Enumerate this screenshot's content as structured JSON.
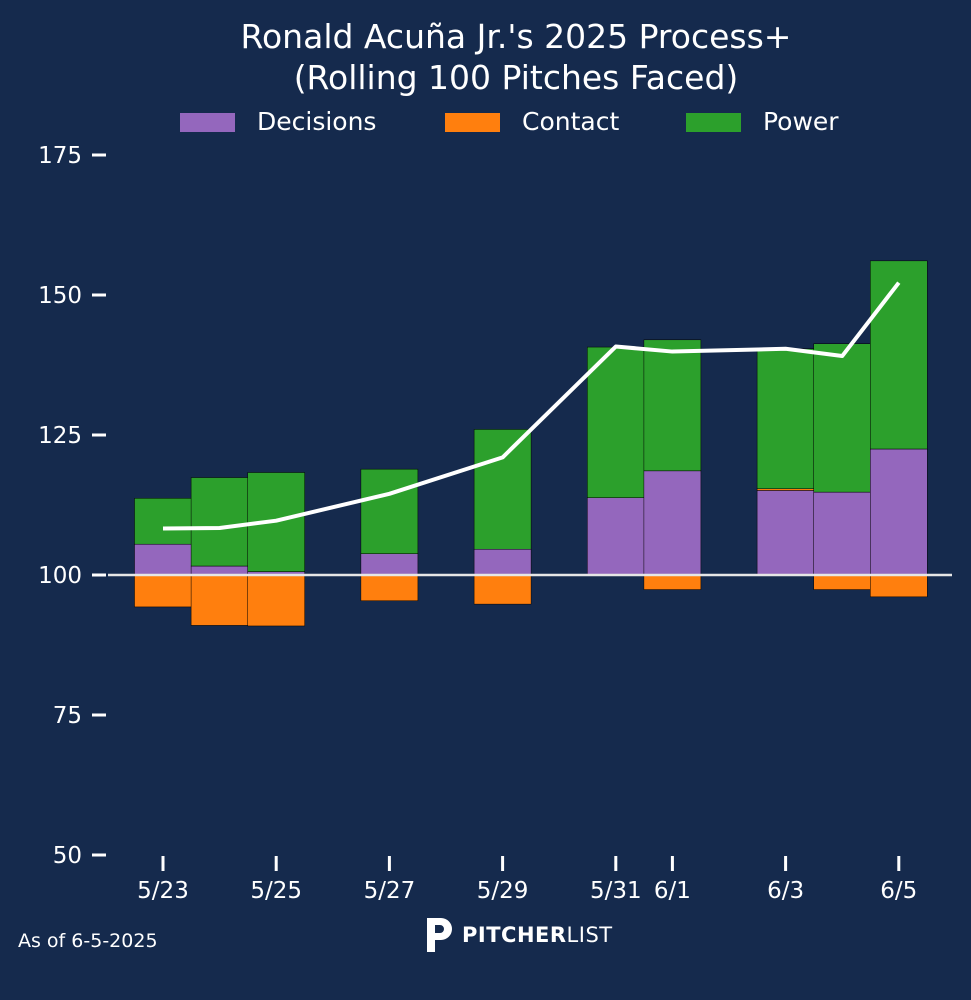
{
  "chart_data": {
    "type": "bar",
    "title": "Ronald Acuña Jr.'s 2025 Process+",
    "subtitle": "(Rolling 100 Pitches Faced)",
    "baseline": 100,
    "ylim": [
      50,
      175
    ],
    "yticks": [
      50,
      75,
      100,
      125,
      150,
      175
    ],
    "x_tick_labels": [
      "5/23",
      "5/25",
      "5/27",
      "5/29",
      "5/31",
      "6/1",
      "6/3",
      "6/5"
    ],
    "x_tick_days": [
      0,
      2,
      4,
      6,
      8,
      9,
      11,
      13
    ],
    "legend": {
      "placement": "top-center",
      "entries": [
        "Decisions",
        "Contact",
        "Power"
      ]
    },
    "colors": {
      "decisions": "#9467bd",
      "contact": "#ff7f0e",
      "power": "#2ca02c",
      "line": "#ffffff",
      "background": "#152a4d"
    },
    "series": [
      {
        "name": "Decisions",
        "key": "decisions",
        "values": [
          105.5,
          101.6,
          100.6,
          103.8,
          104.6,
          113.8,
          118.6,
          115.1,
          114.8,
          122.5
        ]
      },
      {
        "name": "Contact",
        "key": "contact",
        "values": [
          -5.7,
          -9.0,
          -9.1,
          -4.6,
          -5.2,
          0,
          -2.6,
          0.3,
          -2.6,
          -3.9
        ]
      },
      {
        "name": "Power",
        "key": "power",
        "values": [
          8.2,
          15.8,
          17.7,
          15.1,
          21.4,
          26.9,
          23.4,
          25.0,
          26.5,
          33.6
        ]
      }
    ],
    "bar_days": [
      0,
      1,
      2,
      4,
      6,
      8,
      9,
      11,
      12,
      13
    ],
    "line": {
      "name": "Process+",
      "days": [
        0,
        1,
        2,
        4,
        6,
        8,
        9,
        11,
        12,
        13
      ],
      "values": [
        108.3,
        108.4,
        109.7,
        114.5,
        121.0,
        140.8,
        139.9,
        140.4,
        139.1,
        152.2
      ]
    }
  },
  "footer": {
    "as_of": "As of 6-5-2025",
    "brand_bold": "PITCHER",
    "brand_light": "LIST"
  }
}
